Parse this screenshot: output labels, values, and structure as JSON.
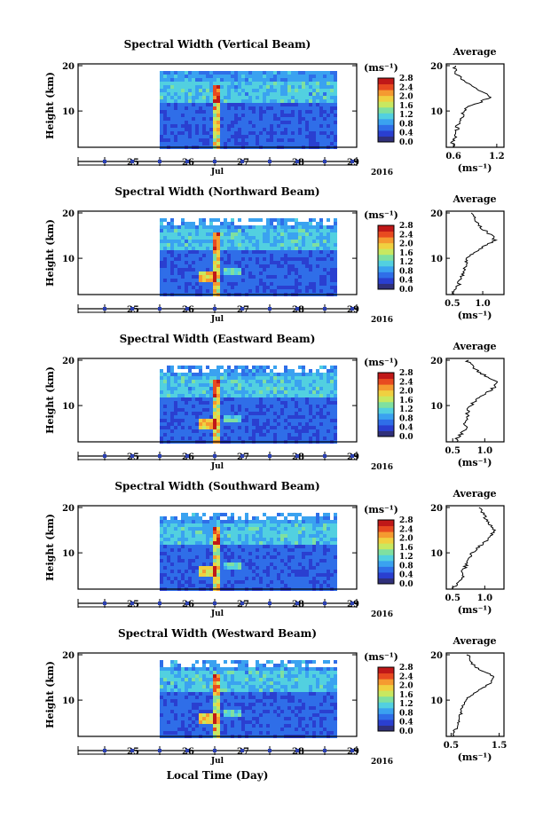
{
  "figure": {
    "xlabel": "Local Time (Day)",
    "month_label": "Jul",
    "year_label": "2016"
  },
  "colorbar": {
    "unit_label": "(ms⁻¹)",
    "ticks": [
      "0.0",
      "0.4",
      "0.8",
      "1.2",
      "1.6",
      "2.0",
      "2.4",
      "2.8"
    ],
    "colors": [
      "#30307a",
      "#2a3fd0",
      "#2f6ee8",
      "#3aa2f0",
      "#52d0e0",
      "#7fe0a0",
      "#c8e860",
      "#f0d040",
      "#f59a30",
      "#e84a20",
      "#c01818"
    ]
  },
  "chart_data": [
    {
      "type": "heatmap",
      "title": "Spectral Width (Vertical Beam)",
      "ylabel": "Height (km)",
      "yticks": [
        "10",
        "20"
      ],
      "ylim": [
        2,
        20
      ],
      "xlim": [
        25,
        29.5
      ],
      "xticks": [
        "25",
        "26",
        "27",
        "28",
        "29"
      ],
      "data_start_day": 26.0,
      "data_end_day": 29.7,
      "colorbar_max": 2.8,
      "description_of_field": "spectral width mostly 0.4-1.0; enhanced 1.4-2.2 near 27 Jul in 2-12 km; enhanced band near 13-16 km",
      "average_profile": {
        "title": "Average",
        "xlabel": "(ms⁻¹)",
        "xticks": [
          "0.6",
          "1.2"
        ],
        "xlim": [
          0.5,
          1.3
        ],
        "yticks": [
          "10",
          "20"
        ],
        "height_km": [
          2,
          3,
          4,
          5,
          6,
          7,
          8,
          9,
          10,
          11,
          12,
          13,
          14,
          15,
          16,
          17,
          18,
          19,
          20
        ],
        "value": [
          0.6,
          0.58,
          0.62,
          0.6,
          0.65,
          0.66,
          0.7,
          0.72,
          0.74,
          0.8,
          0.98,
          1.1,
          1.05,
          0.9,
          0.8,
          0.72,
          0.65,
          0.62,
          0.6
        ]
      }
    },
    {
      "type": "heatmap",
      "title": "Spectral Width (Northward Beam)",
      "ylabel": "Height (km)",
      "yticks": [
        "10",
        "20"
      ],
      "ylim": [
        2,
        20
      ],
      "xlim": [
        25,
        29.5
      ],
      "xticks": [
        "25",
        "26",
        "27",
        "28",
        "29"
      ],
      "data_start_day": 26.0,
      "data_end_day": 29.7,
      "colorbar_max": 2.8,
      "average_profile": {
        "title": "Average",
        "xlabel": "(ms⁻¹)",
        "xticks": [
          "0.5",
          "1.0"
        ],
        "xlim": [
          0.4,
          1.35
        ],
        "yticks": [
          "10",
          "20"
        ],
        "height_km": [
          2,
          3,
          4,
          5,
          6,
          7,
          8,
          9,
          10,
          11,
          12,
          13,
          14,
          15,
          16,
          17,
          18,
          19,
          20
        ],
        "value": [
          0.52,
          0.55,
          0.6,
          0.62,
          0.66,
          0.68,
          0.7,
          0.72,
          0.75,
          0.82,
          0.95,
          1.08,
          1.2,
          1.15,
          1.05,
          0.95,
          0.9,
          0.85,
          0.8
        ]
      }
    },
    {
      "type": "heatmap",
      "title": "Spectral Width (Eastward Beam)",
      "ylabel": "Height (km)",
      "yticks": [
        "10",
        "20"
      ],
      "ylim": [
        2,
        20
      ],
      "xlim": [
        25,
        29.5
      ],
      "xticks": [
        "25",
        "26",
        "27",
        "28",
        "29"
      ],
      "data_start_day": 26.0,
      "data_end_day": 29.7,
      "colorbar_max": 2.8,
      "average_profile": {
        "title": "Average",
        "xlabel": "(ms⁻¹)",
        "xticks": [
          "0.5",
          "1.0"
        ],
        "xlim": [
          0.4,
          1.3
        ],
        "yticks": [
          "10",
          "20"
        ],
        "height_km": [
          2,
          3,
          4,
          5,
          6,
          7,
          8,
          9,
          10,
          11,
          12,
          13,
          14,
          15,
          16,
          17,
          18,
          19,
          20
        ],
        "value": [
          0.55,
          0.58,
          0.65,
          0.7,
          0.7,
          0.75,
          0.72,
          0.74,
          0.78,
          0.85,
          0.95,
          1.05,
          1.15,
          1.2,
          1.1,
          0.95,
          0.85,
          0.78,
          0.72
        ]
      }
    },
    {
      "type": "heatmap",
      "title": "Spectral Width (Southward Beam)",
      "ylabel": "Height (km)",
      "yticks": [
        "10",
        "20"
      ],
      "ylim": [
        2,
        20
      ],
      "xlim": [
        25,
        29.5
      ],
      "xticks": [
        "25",
        "26",
        "27",
        "28",
        "29"
      ],
      "data_start_day": 26.0,
      "data_end_day": 29.7,
      "colorbar_max": 2.8,
      "average_profile": {
        "title": "Average",
        "xlabel": "(ms⁻¹)",
        "xticks": [
          "0.5",
          "1.0"
        ],
        "xlim": [
          0.4,
          1.3
        ],
        "yticks": [
          "10",
          "20"
        ],
        "height_km": [
          2,
          3,
          4,
          5,
          6,
          7,
          8,
          9,
          10,
          11,
          12,
          13,
          14,
          15,
          16,
          17,
          18,
          19,
          20
        ],
        "value": [
          0.5,
          0.55,
          0.62,
          0.66,
          0.65,
          0.7,
          0.72,
          0.76,
          0.8,
          0.88,
          0.98,
          1.05,
          1.1,
          1.15,
          1.1,
          1.05,
          1.0,
          0.95,
          0.92
        ]
      }
    },
    {
      "type": "heatmap",
      "title": "Spectral Width (Westward Beam)",
      "ylabel": "Height (km)",
      "yticks": [
        "10",
        "20"
      ],
      "ylim": [
        2,
        20
      ],
      "xlim": [
        25,
        29.5
      ],
      "xticks": [
        "25",
        "26",
        "27",
        "28",
        "29"
      ],
      "data_start_day": 26.0,
      "data_end_day": 29.7,
      "colorbar_max": 2.8,
      "average_profile": {
        "title": "Average",
        "xlabel": "(ms⁻¹)",
        "xticks": [
          "0.5",
          "1.5"
        ],
        "xlim": [
          0.4,
          1.6
        ],
        "yticks": [
          "10",
          "20"
        ],
        "height_km": [
          2,
          3,
          4,
          5,
          6,
          7,
          8,
          9,
          10,
          11,
          12,
          13,
          14,
          15,
          16,
          17,
          18,
          19,
          20
        ],
        "value": [
          0.52,
          0.55,
          0.62,
          0.66,
          0.68,
          0.7,
          0.72,
          0.75,
          0.8,
          0.9,
          1.05,
          1.2,
          1.35,
          1.4,
          1.25,
          1.05,
          0.95,
          0.9,
          0.85
        ]
      }
    }
  ]
}
